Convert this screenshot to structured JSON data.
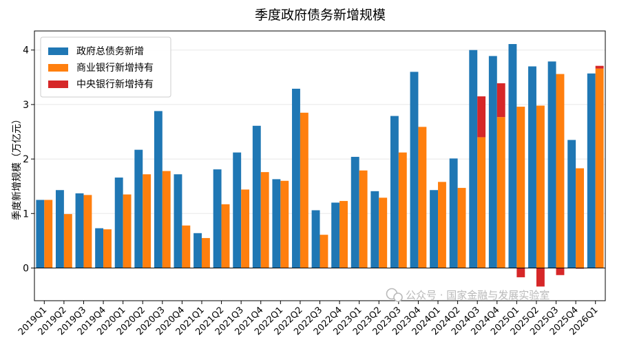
{
  "chart_data": {
    "type": "bar",
    "title": "季度政府债务新增规模",
    "ylabel": "季度新增规模（万亿元）",
    "xlabel": "",
    "ylim": [
      -0.6,
      4.35
    ],
    "yticks": [
      0,
      1,
      2,
      3,
      4
    ],
    "grid": "y",
    "legend": "top-left",
    "categories": [
      "2019Q1",
      "2019Q2",
      "2019Q3",
      "2019Q4",
      "2020Q1",
      "2020Q2",
      "2020Q3",
      "2020Q4",
      "2021Q1",
      "2021Q2",
      "2021Q3",
      "2021Q4",
      "2022Q1",
      "2022Q2",
      "2022Q3",
      "2022Q4",
      "2023Q1",
      "2023Q2",
      "2023Q3",
      "2023Q4",
      "2024Q1",
      "2024Q2",
      "2024Q3",
      "2024Q4",
      "2025Q1",
      "2025Q2",
      "2025Q3",
      "2025Q4",
      "2026Q1"
    ],
    "series": [
      {
        "name": "政府总债务新增",
        "color": "#1f77b4",
        "values": [
          1.25,
          1.43,
          1.37,
          0.73,
          1.66,
          2.17,
          2.88,
          1.72,
          0.64,
          1.81,
          2.12,
          2.61,
          1.63,
          3.29,
          1.06,
          1.2,
          2.04,
          1.41,
          2.79,
          3.6,
          1.43,
          2.01,
          4.0,
          3.89,
          4.11,
          3.7,
          3.79,
          2.35,
          3.57
        ]
      },
      {
        "name": "商业银行新增持有",
        "color": "#ff7f0e",
        "values": [
          1.25,
          0.99,
          1.34,
          0.71,
          1.35,
          1.72,
          1.78,
          0.78,
          0.55,
          1.17,
          1.44,
          1.76,
          1.6,
          2.85,
          0.61,
          1.23,
          1.79,
          1.29,
          2.12,
          2.59,
          1.58,
          1.47,
          2.4,
          2.77,
          2.96,
          2.98,
          3.56,
          1.83,
          3.66
        ]
      },
      {
        "name": "中央银行新增持有",
        "color": "#d62728",
        "values": [
          0,
          0,
          0,
          0,
          0,
          0,
          0,
          0,
          0,
          0,
          0,
          0,
          0,
          0,
          0,
          0,
          0,
          0,
          0,
          0,
          0,
          0,
          0.75,
          0.62,
          -0.17,
          -0.34,
          -0.13,
          -0.01,
          0.05
        ]
      }
    ]
  },
  "watermark": {
    "text": "公众号 · 国家金融与发展实验室"
  }
}
